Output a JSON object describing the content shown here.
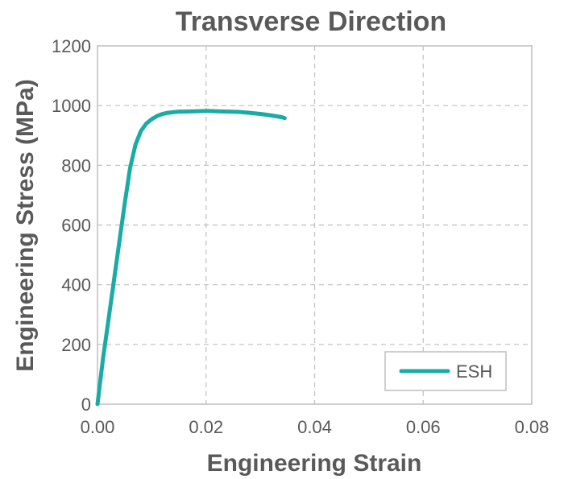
{
  "chart_data": {
    "type": "line",
    "title": "Transverse Direction",
    "xlabel": "Engineering Strain",
    "ylabel": "Engineering Stress (MPa)",
    "xlim": [
      0,
      0.08
    ],
    "ylim": [
      0,
      1200
    ],
    "x_ticks": [
      "0.00",
      "0.02",
      "0.04",
      "0.06",
      "0.08"
    ],
    "y_ticks": [
      "0",
      "200",
      "400",
      "600",
      "800",
      "1000",
      "1200"
    ],
    "grid": true,
    "legend_position": "bottom-right",
    "series": [
      {
        "name": "ESH",
        "color": "#1aaca4",
        "x": [
          0,
          0.001,
          0.002,
          0.003,
          0.004,
          0.005,
          0.006,
          0.007,
          0.008,
          0.009,
          0.01,
          0.011,
          0.012,
          0.013,
          0.014,
          0.015,
          0.016,
          0.018,
          0.02,
          0.022,
          0.024,
          0.026,
          0.028,
          0.03,
          0.032,
          0.034,
          0.0345
        ],
        "y": [
          0,
          150,
          280,
          410,
          540,
          670,
          790,
          870,
          915,
          940,
          955,
          965,
          972,
          976,
          978,
          980,
          980,
          981,
          982,
          981,
          980,
          979,
          976,
          972,
          967,
          961,
          958
        ]
      }
    ]
  }
}
